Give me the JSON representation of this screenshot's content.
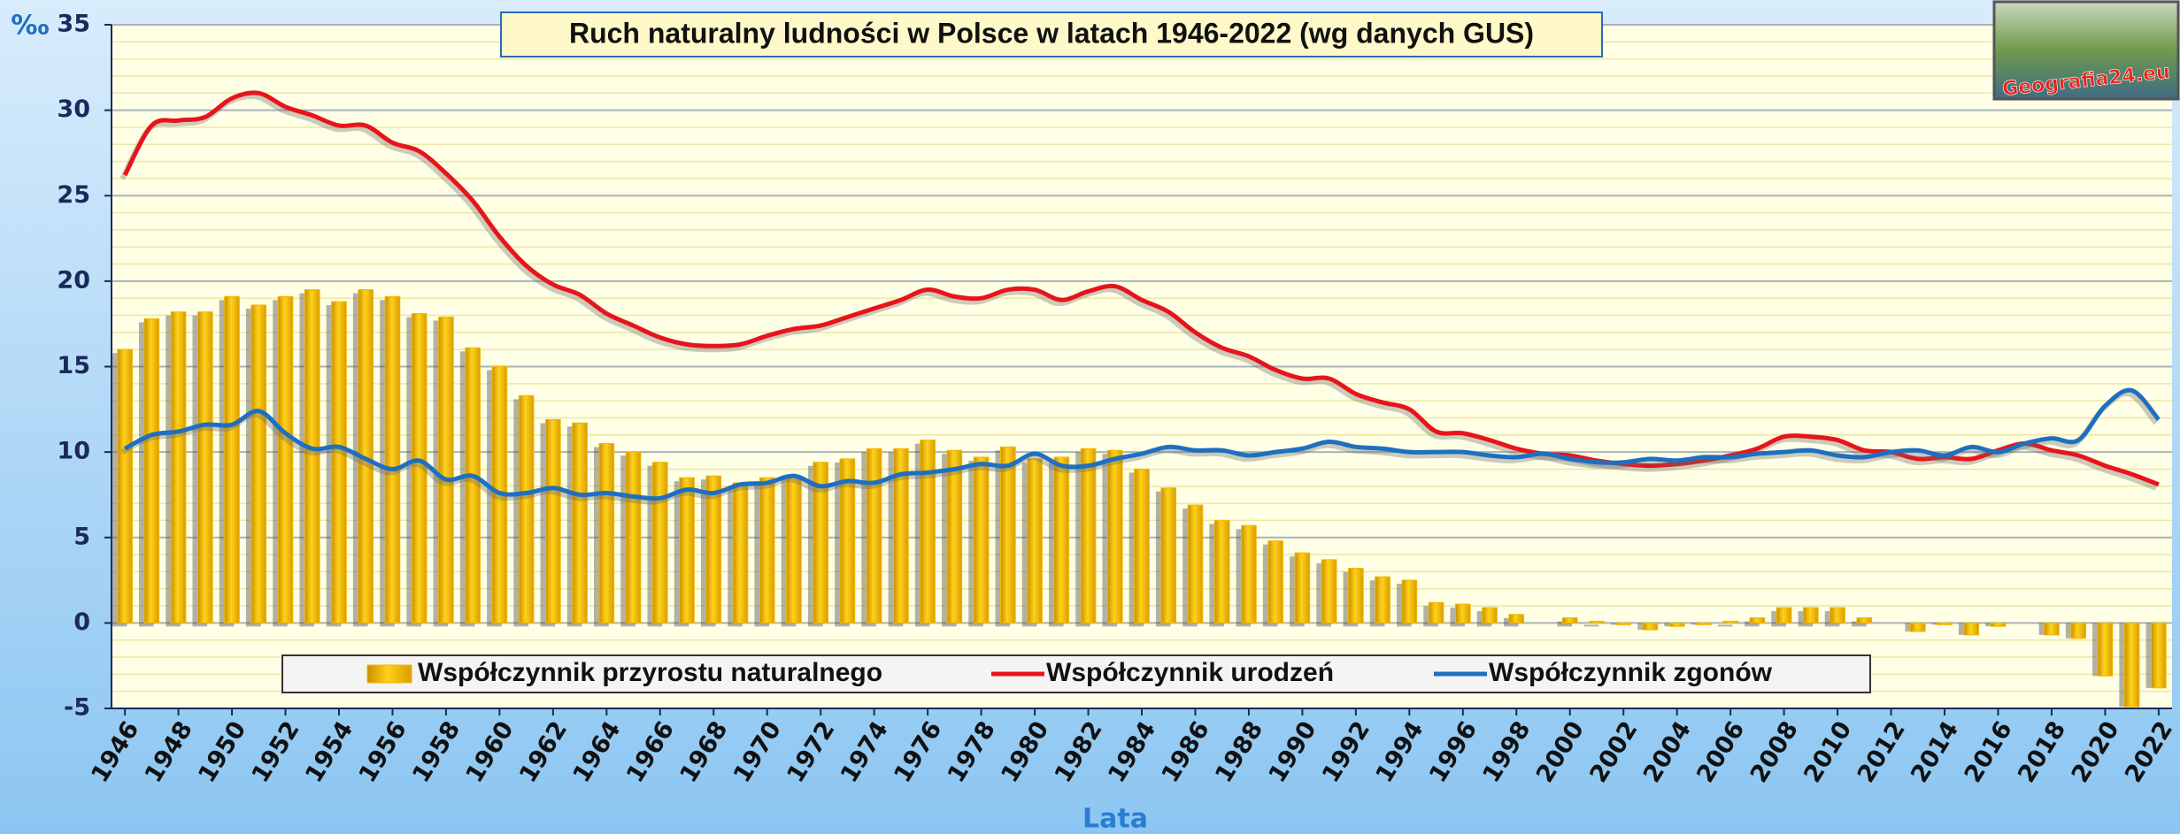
{
  "chart_data": {
    "type": "combo",
    "title": "Ruch naturalny ludności w Polsce w latach 1946-2022 (wg danych GUS)",
    "y_label": "‰",
    "x_label": "Lata",
    "logo_text": "Geografia24.eu",
    "x": [
      1946,
      1947,
      1948,
      1949,
      1950,
      1951,
      1952,
      1953,
      1954,
      1955,
      1956,
      1957,
      1958,
      1959,
      1960,
      1961,
      1962,
      1963,
      1964,
      1965,
      1966,
      1967,
      1968,
      1969,
      1970,
      1971,
      1972,
      1973,
      1974,
      1975,
      1976,
      1977,
      1978,
      1979,
      1980,
      1981,
      1982,
      1983,
      1984,
      1985,
      1986,
      1987,
      1988,
      1989,
      1990,
      1991,
      1992,
      1993,
      1994,
      1995,
      1996,
      1997,
      1998,
      1999,
      2000,
      2001,
      2002,
      2003,
      2004,
      2005,
      2006,
      2007,
      2008,
      2009,
      2010,
      2011,
      2012,
      2013,
      2014,
      2015,
      2016,
      2017,
      2018,
      2019,
      2020,
      2021,
      2022
    ],
    "xlim": [
      1945.5,
      2022.5
    ],
    "xticks": [
      1946,
      1948,
      1950,
      1952,
      1954,
      1956,
      1958,
      1960,
      1962,
      1964,
      1966,
      1968,
      1970,
      1972,
      1974,
      1976,
      1978,
      1980,
      1982,
      1984,
      1986,
      1988,
      1990,
      1992,
      1994,
      1996,
      1998,
      2000,
      2002,
      2004,
      2006,
      2008,
      2010,
      2012,
      2014,
      2016,
      2018,
      2020,
      2022
    ],
    "ylim": [
      -5,
      35
    ],
    "yticks": [
      35,
      30,
      25,
      20,
      15,
      10,
      5,
      0,
      -5
    ],
    "grid": true,
    "minor_grid": true,
    "legend": "bottom",
    "series": [
      {
        "name": "Współczynnik przyrostu naturalnego",
        "type": "bar",
        "color": "#f2b705",
        "values": [
          16.0,
          17.8,
          18.2,
          18.2,
          19.1,
          18.6,
          19.1,
          19.5,
          18.8,
          19.5,
          19.1,
          18.1,
          17.9,
          16.1,
          15.0,
          13.3,
          11.9,
          11.7,
          10.5,
          10.0,
          9.4,
          8.5,
          8.6,
          8.2,
          8.5,
          8.6,
          9.4,
          9.6,
          10.2,
          10.2,
          10.7,
          10.1,
          9.7,
          10.3,
          9.6,
          9.7,
          10.2,
          10.1,
          9.0,
          7.9,
          6.9,
          6.0,
          5.7,
          4.8,
          4.1,
          3.7,
          3.2,
          2.7,
          2.5,
          1.2,
          1.1,
          0.9,
          0.5,
          0.0,
          0.3,
          0.1,
          -0.1,
          -0.4,
          -0.2,
          -0.1,
          0.1,
          0.3,
          0.9,
          0.9,
          0.9,
          0.3,
          0.0,
          -0.5,
          -0.1,
          -0.7,
          -0.2,
          0.0,
          -0.7,
          -0.9,
          -3.1,
          -4.9,
          -3.8
        ]
      },
      {
        "name": "Współczynnik urodzeń",
        "type": "line",
        "color": "#e8141b",
        "values": [
          26.2,
          29.1,
          29.4,
          29.6,
          30.7,
          31.0,
          30.2,
          29.7,
          29.1,
          29.1,
          28.1,
          27.6,
          26.3,
          24.7,
          22.6,
          20.9,
          19.8,
          19.2,
          18.1,
          17.4,
          16.7,
          16.3,
          16.2,
          16.3,
          16.8,
          17.2,
          17.4,
          17.9,
          18.4,
          18.9,
          19.5,
          19.1,
          19.0,
          19.5,
          19.5,
          18.9,
          19.4,
          19.7,
          18.9,
          18.2,
          17.0,
          16.1,
          15.6,
          14.8,
          14.3,
          14.3,
          13.4,
          12.9,
          12.5,
          11.2,
          11.1,
          10.7,
          10.2,
          9.9,
          9.8,
          9.5,
          9.3,
          9.2,
          9.3,
          9.5,
          9.8,
          10.2,
          10.9,
          10.9,
          10.7,
          10.1,
          10.0,
          9.6,
          9.7,
          9.6,
          10.1,
          10.5,
          10.1,
          9.8,
          9.2,
          8.7,
          8.1
        ]
      },
      {
        "name": "Współczynnik zgonów",
        "type": "line",
        "color": "#1f6fc0",
        "values": [
          10.2,
          11.0,
          11.2,
          11.6,
          11.6,
          12.4,
          11.1,
          10.2,
          10.3,
          9.6,
          9.0,
          9.5,
          8.4,
          8.6,
          7.6,
          7.6,
          7.9,
          7.5,
          7.6,
          7.4,
          7.3,
          7.8,
          7.6,
          8.1,
          8.2,
          8.6,
          8.0,
          8.3,
          8.2,
          8.7,
          8.8,
          9.0,
          9.3,
          9.2,
          9.9,
          9.2,
          9.2,
          9.6,
          9.9,
          10.3,
          10.1,
          10.1,
          9.8,
          10.0,
          10.2,
          10.6,
          10.3,
          10.2,
          10.0,
          10.0,
          10.0,
          9.8,
          9.7,
          9.9,
          9.6,
          9.4,
          9.4,
          9.6,
          9.5,
          9.7,
          9.7,
          9.9,
          10.0,
          10.1,
          9.8,
          9.7,
          10.0,
          10.1,
          9.8,
          10.3,
          10.0,
          10.5,
          10.8,
          10.7,
          12.7,
          13.6,
          11.9
        ]
      }
    ]
  }
}
